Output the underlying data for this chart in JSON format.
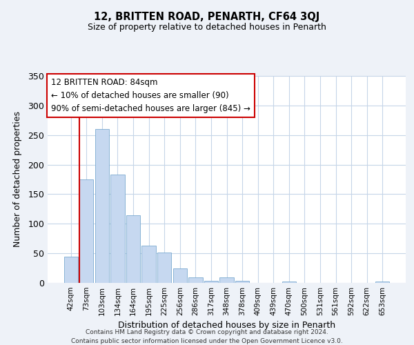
{
  "title": "12, BRITTEN ROAD, PENARTH, CF64 3QJ",
  "subtitle": "Size of property relative to detached houses in Penarth",
  "xlabel": "Distribution of detached houses by size in Penarth",
  "ylabel": "Number of detached properties",
  "categories": [
    "42sqm",
    "73sqm",
    "103sqm",
    "134sqm",
    "164sqm",
    "195sqm",
    "225sqm",
    "256sqm",
    "286sqm",
    "317sqm",
    "348sqm",
    "378sqm",
    "409sqm",
    "439sqm",
    "470sqm",
    "500sqm",
    "531sqm",
    "561sqm",
    "592sqm",
    "622sqm",
    "653sqm"
  ],
  "values": [
    44,
    175,
    260,
    183,
    114,
    63,
    51,
    25,
    9,
    4,
    9,
    4,
    0,
    0,
    2,
    0,
    0,
    0,
    0,
    0,
    2
  ],
  "bar_color": "#c6d8f0",
  "bar_edge_color": "#7aaad0",
  "vline_color": "#cc0000",
  "vline_x_index": 1,
  "annotation_line1": "12 BRITTEN ROAD: 84sqm",
  "annotation_line2": "← 10% of detached houses are smaller (90)",
  "annotation_line3": "90% of semi-detached houses are larger (845) →",
  "annotation_box_edgecolor": "#cc0000",
  "ylim": [
    0,
    350
  ],
  "yticks": [
    0,
    50,
    100,
    150,
    200,
    250,
    300,
    350
  ],
  "footer1": "Contains HM Land Registry data © Crown copyright and database right 2024.",
  "footer2": "Contains public sector information licensed under the Open Government Licence v3.0.",
  "bg_color": "#eef2f8",
  "plot_bg_color": "#ffffff",
  "grid_color": "#c5d5e8"
}
